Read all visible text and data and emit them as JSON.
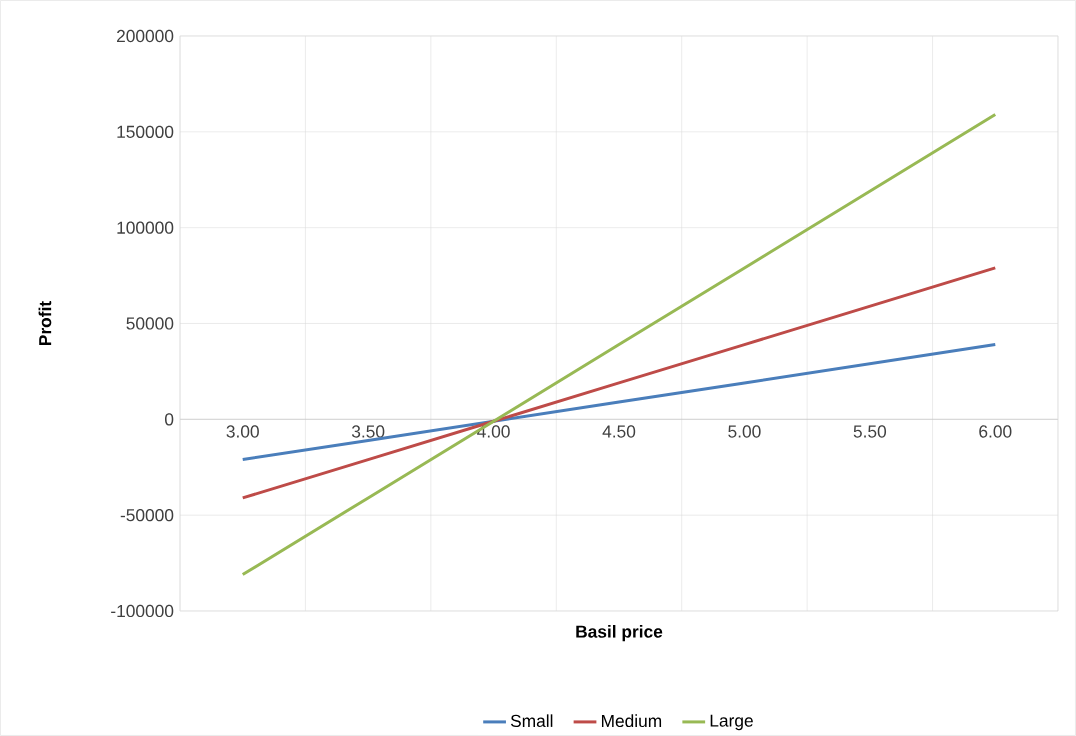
{
  "chart_data": {
    "type": "line",
    "xlabel": "Basil price",
    "ylabel": "Profit",
    "categories": [
      "3.00",
      "3.50",
      "4.00",
      "4.50",
      "5.00",
      "5.50",
      "6.00"
    ],
    "series": [
      {
        "name": "Small",
        "color": "#4a7ebb",
        "values": [
          -21000,
          -11000,
          -1000,
          9000,
          19000,
          29000,
          39000
        ]
      },
      {
        "name": "Medium",
        "color": "#be4b48",
        "values": [
          -41000,
          -21000,
          -1000,
          19000,
          39000,
          59000,
          79000
        ]
      },
      {
        "name": "Large",
        "color": "#98b954",
        "values": [
          -81000,
          -41000,
          -1000,
          39000,
          79000,
          119000,
          159000
        ]
      }
    ],
    "ylim": [
      -100000,
      200000
    ],
    "yticks": [
      -100000,
      -50000,
      0,
      50000,
      100000,
      150000,
      200000
    ],
    "grid": true,
    "legend": "bottom",
    "marker": "none",
    "line_style": "solid"
  }
}
